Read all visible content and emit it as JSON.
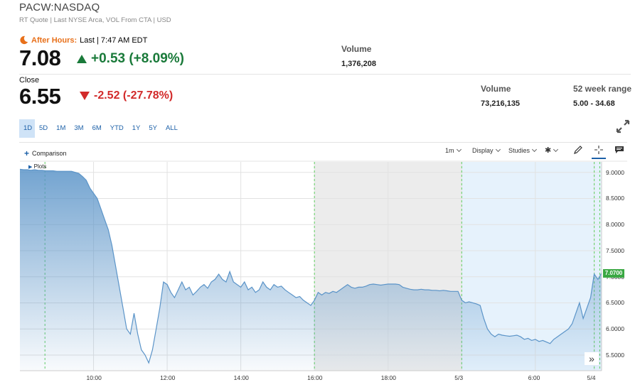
{
  "header": {
    "ticker": "PACW:NASDAQ",
    "subline": "RT Quote | Last NYSE Arca, VOL From CTA | USD"
  },
  "after_hours": {
    "label": "After Hours:",
    "last_text": "Last | 7:47 AM EDT",
    "price": "7.08",
    "change": "+0.53 (+8.09%)",
    "volume_label": "Volume",
    "volume": "1,376,208"
  },
  "close": {
    "label": "Close",
    "price": "6.55",
    "change": "-2.52 (-27.78%)",
    "volume_label": "Volume",
    "volume": "73,216,135",
    "range_label": "52 week range",
    "range": "5.00 - 34.68"
  },
  "ranges": [
    "1D",
    "5D",
    "1M",
    "3M",
    "6M",
    "YTD",
    "1Y",
    "5Y",
    "ALL"
  ],
  "toolbar": {
    "comparison": "Comparison",
    "interval": "1m",
    "display": "Display",
    "studies": "Studies",
    "plots": "Plots"
  },
  "colors": {
    "accent": "#1c60a8",
    "up": "#1a7a3a",
    "down": "#d22a2a",
    "after_hours": "#e8701a",
    "line": "#5b94c8",
    "last_price_tag": "#3aa843"
  },
  "chart_data": {
    "type": "area",
    "last_price_tag": "7.0700",
    "y_ticks": [
      "9.0000",
      "8.5000",
      "8.0000",
      "7.5000",
      "7.0000",
      "6.5000",
      "6.0000",
      "5.5000"
    ],
    "ylim": [
      5.2,
      9.2
    ],
    "x_ticks": [
      {
        "label": "10:00",
        "idx": 20
      },
      {
        "label": "12:00",
        "idx": 40
      },
      {
        "label": "14:00",
        "idx": 60
      },
      {
        "label": "16:00",
        "idx": 80
      },
      {
        "label": "18:00",
        "idx": 100
      },
      {
        "label": "5/3",
        "idx": 120
      },
      {
        "label": "6:00",
        "idx": 140
      },
      {
        "label": "5/4",
        "idx": 156
      }
    ],
    "values": [
      9.06,
      9.05,
      9.05,
      9.04,
      9.05,
      9.04,
      9.04,
      9.03,
      9.03,
      9.03,
      9.02,
      9.02,
      9.02,
      9.02,
      9.02,
      9.0,
      8.98,
      8.92,
      8.85,
      8.7,
      8.6,
      8.5,
      8.3,
      8.1,
      7.9,
      7.6,
      7.2,
      6.8,
      6.4,
      6.0,
      5.9,
      6.3,
      5.9,
      5.6,
      5.5,
      5.35,
      5.6,
      6.0,
      6.4,
      6.9,
      6.85,
      6.7,
      6.6,
      6.75,
      6.9,
      6.75,
      6.8,
      6.65,
      6.72,
      6.8,
      6.85,
      6.78,
      6.9,
      6.95,
      7.05,
      6.95,
      6.9,
      7.1,
      6.9,
      6.85,
      6.8,
      6.9,
      6.75,
      6.8,
      6.7,
      6.75,
      6.9,
      6.8,
      6.75,
      6.85,
      6.8,
      6.82,
      6.75,
      6.7,
      6.65,
      6.6,
      6.62,
      6.55,
      6.5,
      6.45,
      6.55,
      6.7,
      6.65,
      6.7,
      6.68,
      6.72,
      6.7,
      6.75,
      6.8,
      6.85,
      6.8,
      6.78,
      6.8,
      6.8,
      6.82,
      6.85,
      6.86,
      6.85,
      6.84,
      6.85,
      6.86,
      6.86,
      6.86,
      6.85,
      6.8,
      6.78,
      6.76,
      6.75,
      6.75,
      6.76,
      6.75,
      6.75,
      6.74,
      6.74,
      6.73,
      6.74,
      6.73,
      6.72,
      6.72,
      6.72,
      6.55,
      6.5,
      6.52,
      6.5,
      6.48,
      6.45,
      6.2,
      6.0,
      5.9,
      5.85,
      5.9,
      5.88,
      5.87,
      5.86,
      5.87,
      5.88,
      5.85,
      5.8,
      5.82,
      5.78,
      5.8,
      5.76,
      5.78,
      5.75,
      5.72,
      5.8,
      5.85,
      5.9,
      5.95,
      6.0,
      6.1,
      6.3,
      6.5,
      6.2,
      6.4,
      6.6,
      7.05,
      6.95,
      7.07
    ]
  }
}
